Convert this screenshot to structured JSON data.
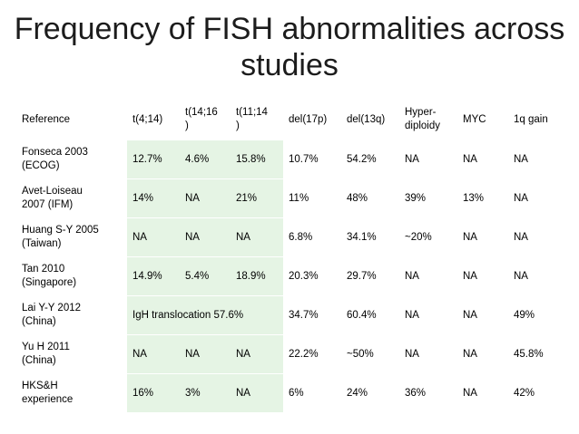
{
  "title": "Frequency of FISH abnormalities across studies",
  "colors": {
    "cell_green": "#e5f4e4",
    "background": "#ffffff",
    "title_text": "#1c1c1c"
  },
  "table": {
    "headers": [
      "Reference",
      "t(4;14)",
      "t(14;16)",
      "t(11;14)",
      "del(17p)",
      "del(13q)",
      "Hyper-diploidy",
      "MYC",
      "1q gain"
    ],
    "header_display": {
      "t1416": [
        "t(14;16",
        ")"
      ],
      "t1114": [
        "t(11;14",
        ")"
      ],
      "hyper": [
        "Hyper-",
        "diploidy"
      ]
    },
    "rows": [
      {
        "ref": [
          "Fonseca 2003",
          "(ECOG)"
        ],
        "cells": [
          "12.7%",
          "4.6%",
          "15.8%",
          "10.7%",
          "54.2%",
          "NA",
          "NA",
          "NA"
        ]
      },
      {
        "ref": [
          "Avet-Loiseau",
          "2007 (IFM)"
        ],
        "cells": [
          "14%",
          "NA",
          "21%",
          "11%",
          "48%",
          "39%",
          "13%",
          "NA"
        ]
      },
      {
        "ref": [
          "Huang S-Y 2005",
          "(Taiwan)"
        ],
        "cells": [
          "NA",
          "NA",
          "NA",
          "6.8%",
          "34.1%",
          "~20%",
          "NA",
          "NA"
        ]
      },
      {
        "ref": [
          "Tan 2010",
          "(Singapore)"
        ],
        "cells": [
          "14.9%",
          "5.4%",
          "18.9%",
          "20.3%",
          "29.7%",
          "NA",
          "NA",
          "NA"
        ]
      },
      {
        "ref": [
          "Lai Y-Y 2012",
          "(China)"
        ],
        "merged": "IgH translocation 57.6%",
        "cells": [
          "34.7%",
          "60.4%",
          "NA",
          "NA",
          "49%"
        ]
      },
      {
        "ref": [
          "Yu H 2011",
          "(China)"
        ],
        "cells": [
          "NA",
          "NA",
          "NA",
          "22.2%",
          "~50%",
          "NA",
          "NA",
          "45.8%"
        ]
      },
      {
        "ref": [
          "HKS&H",
          "experience"
        ],
        "cells": [
          "16%",
          "3%",
          "NA",
          "6%",
          "24%",
          "36%",
          "NA",
          "42%"
        ]
      }
    ]
  }
}
